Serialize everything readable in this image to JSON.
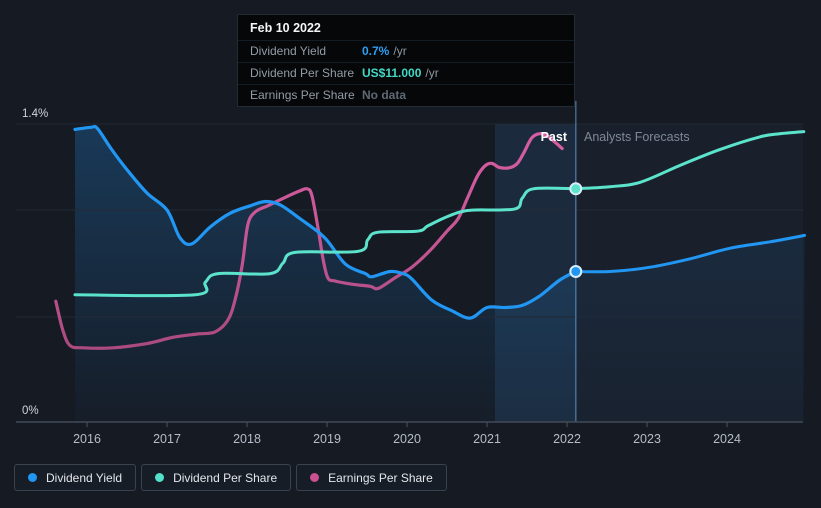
{
  "tooltip": {
    "date": "Feb 10 2022",
    "rows": [
      {
        "label": "Dividend Yield",
        "value": "0.7%",
        "suffix": "/yr",
        "value_color": "#2f9ff3"
      },
      {
        "label": "Dividend Per Share",
        "value": "US$11.000",
        "suffix": "/yr",
        "value_color": "#43d9c5"
      },
      {
        "label": "Earnings Per Share",
        "value": "No data",
        "suffix": "",
        "value_color": "#5f6975"
      }
    ]
  },
  "axis": {
    "y_top_label": "1.4%",
    "y_bottom_label": "0%",
    "x_ticks": [
      "2016",
      "2017",
      "2018",
      "2019",
      "2020",
      "2021",
      "2022",
      "2023",
      "2024"
    ]
  },
  "annotations": {
    "past": "Past",
    "forecast": "Analysts Forecasts"
  },
  "legend": [
    {
      "label": "Dividend Yield",
      "color": "#2196f3"
    },
    {
      "label": "Dividend Per Share",
      "color": "#53e0cb"
    },
    {
      "label": "Earnings Per Share",
      "color": "#c95192"
    }
  ],
  "colors": {
    "background": "#151a23",
    "dividend_yield": "#2196f3",
    "dividend_per_share": "#5ce3cc",
    "earnings_per_share": "#c0528f",
    "gridline": "#232a36",
    "axis_text": "#b6bdc8"
  },
  "chart_data": {
    "type": "line",
    "title": "Dividend yield history and forecast with analysts forecasts after Feb 10 2022",
    "x_range": [
      2015.1,
      2025.0
    ],
    "y_axis": {
      "min_pct": 0,
      "max_pct": 1.4,
      "labeled_gridlines": [
        "1.4%",
        "0%"
      ]
    },
    "divider_x": 2022.11,
    "highlight_band_x": [
      2021.1,
      2022.11
    ],
    "units_note": "dividend_yield and eps plotted on 0-1.4% axis; dividend_per_share in US$ (US$10 = 1.0% axis position)",
    "series": [
      {
        "name": "Dividend Yield (past)",
        "key": "dy_past",
        "unit": "%",
        "scale": 1,
        "points": [
          [
            2015.85,
            1.38
          ],
          [
            2016.05,
            1.39
          ],
          [
            2016.13,
            1.385
          ],
          [
            2016.3,
            1.29
          ],
          [
            2016.5,
            1.19
          ],
          [
            2016.75,
            1.08
          ],
          [
            2017.0,
            1.0
          ],
          [
            2017.16,
            0.87
          ],
          [
            2017.31,
            0.84
          ],
          [
            2017.54,
            0.92
          ],
          [
            2017.79,
            0.985
          ],
          [
            2018.04,
            1.02
          ],
          [
            2018.23,
            1.04
          ],
          [
            2018.41,
            1.025
          ],
          [
            2018.66,
            0.96
          ],
          [
            2018.97,
            0.87
          ],
          [
            2019.23,
            0.745
          ],
          [
            2019.48,
            0.7
          ],
          [
            2019.56,
            0.685
          ],
          [
            2019.79,
            0.71
          ],
          [
            2019.95,
            0.7
          ],
          [
            2020.06,
            0.675
          ],
          [
            2020.31,
            0.575
          ],
          [
            2020.56,
            0.525
          ],
          [
            2020.79,
            0.49
          ],
          [
            2021.0,
            0.54
          ],
          [
            2021.23,
            0.54
          ],
          [
            2021.44,
            0.55
          ],
          [
            2021.66,
            0.595
          ],
          [
            2021.91,
            0.67
          ],
          [
            2022.11,
            0.71
          ]
        ]
      },
      {
        "name": "Dividend Yield (forecast)",
        "key": "dy_forecast",
        "unit": "%",
        "scale": 1,
        "points": [
          [
            2022.11,
            0.71
          ],
          [
            2022.54,
            0.71
          ],
          [
            2023.04,
            0.73
          ],
          [
            2023.54,
            0.77
          ],
          [
            2024.04,
            0.82
          ],
          [
            2024.54,
            0.85
          ],
          [
            2024.97,
            0.88
          ]
        ]
      },
      {
        "name": "Dividend Per Share (past)",
        "key": "dps_past",
        "unit": "US$",
        "scale": 0.1,
        "points": [
          [
            2015.85,
            6.0
          ],
          [
            2017.35,
            6.0
          ],
          [
            2017.48,
            6.6
          ],
          [
            2017.64,
            7.0
          ],
          [
            2018.29,
            7.0
          ],
          [
            2018.45,
            7.5
          ],
          [
            2018.6,
            8.0
          ],
          [
            2019.39,
            8.05
          ],
          [
            2019.51,
            8.6
          ],
          [
            2019.63,
            8.95
          ],
          [
            2020.13,
            9.0
          ],
          [
            2020.26,
            9.25
          ],
          [
            2020.45,
            9.6
          ],
          [
            2020.66,
            9.9
          ],
          [
            2020.85,
            10.0
          ],
          [
            2021.35,
            10.05
          ],
          [
            2021.44,
            10.55
          ],
          [
            2021.58,
            11.0
          ],
          [
            2022.11,
            11.0
          ]
        ]
      },
      {
        "name": "Dividend Per Share (forecast)",
        "key": "dps_forecast",
        "unit": "US$",
        "scale": 0.1,
        "points": [
          [
            2022.11,
            11.0
          ],
          [
            2022.54,
            11.1
          ],
          [
            2022.91,
            11.3
          ],
          [
            2023.41,
            12.1
          ],
          [
            2023.91,
            12.85
          ],
          [
            2024.41,
            13.45
          ],
          [
            2024.66,
            13.6
          ],
          [
            2024.96,
            13.7
          ]
        ]
      },
      {
        "name": "Earnings Per Share (past)",
        "key": "eps_past",
        "unit": "axis-relative",
        "scale": 1,
        "points": [
          [
            2015.61,
            0.57
          ],
          [
            2015.7,
            0.43
          ],
          [
            2015.79,
            0.36
          ],
          [
            2015.95,
            0.35
          ],
          [
            2016.33,
            0.35
          ],
          [
            2016.75,
            0.37
          ],
          [
            2017.08,
            0.4
          ],
          [
            2017.38,
            0.415
          ],
          [
            2017.6,
            0.425
          ],
          [
            2017.76,
            0.48
          ],
          [
            2017.85,
            0.575
          ],
          [
            2017.94,
            0.74
          ],
          [
            2018.01,
            0.93
          ],
          [
            2018.1,
            0.99
          ],
          [
            2018.26,
            1.02
          ],
          [
            2018.48,
            1.06
          ],
          [
            2018.66,
            1.09
          ],
          [
            2018.75,
            1.1
          ],
          [
            2018.81,
            1.07
          ],
          [
            2018.89,
            0.91
          ],
          [
            2018.95,
            0.77
          ],
          [
            2019.01,
            0.68
          ],
          [
            2019.1,
            0.665
          ],
          [
            2019.31,
            0.65
          ],
          [
            2019.54,
            0.64
          ],
          [
            2019.64,
            0.63
          ],
          [
            2019.85,
            0.68
          ],
          [
            2020.06,
            0.73
          ],
          [
            2020.29,
            0.81
          ],
          [
            2020.5,
            0.9
          ],
          [
            2020.64,
            0.96
          ],
          [
            2020.76,
            1.06
          ],
          [
            2020.88,
            1.16
          ],
          [
            2020.98,
            1.21
          ],
          [
            2021.06,
            1.22
          ],
          [
            2021.16,
            1.2
          ],
          [
            2021.29,
            1.2
          ],
          [
            2021.38,
            1.22
          ],
          [
            2021.46,
            1.27
          ],
          [
            2021.56,
            1.34
          ],
          [
            2021.66,
            1.36
          ],
          [
            2021.75,
            1.35
          ],
          [
            2021.85,
            1.32
          ],
          [
            2021.94,
            1.29
          ]
        ]
      }
    ],
    "markers": [
      {
        "series": "dy_past",
        "x": 2022.11,
        "value": 0.71,
        "scale": 1,
        "color": "#2196f3"
      },
      {
        "series": "dps_past",
        "x": 2022.11,
        "value": 11.0,
        "scale": 0.1,
        "color": "#5ce3cc"
      }
    ]
  }
}
